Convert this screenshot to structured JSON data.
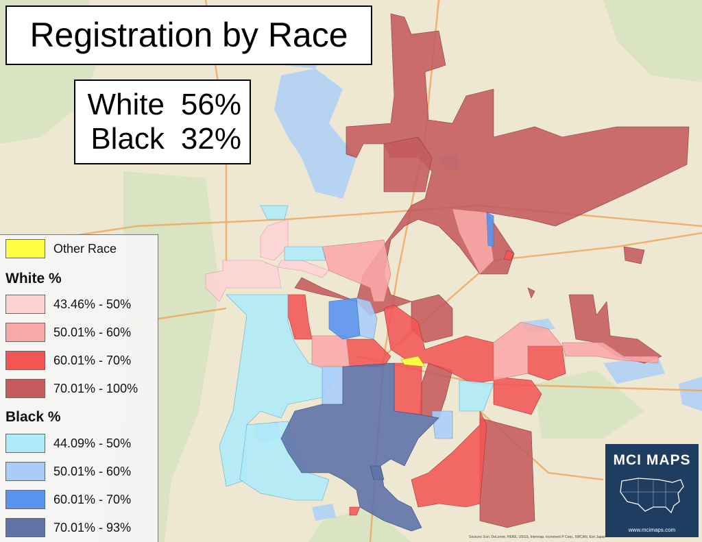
{
  "title": "Registration by Race",
  "stats": [
    {
      "label": "White",
      "value": "56%"
    },
    {
      "label": "Black",
      "value": "32%"
    }
  ],
  "legend": {
    "other": {
      "label": "Other Race",
      "color": "#ffff44"
    },
    "white_heading": "White %",
    "white_bins": [
      {
        "label": "43.46% - 50%",
        "color": "#fcd4d4"
      },
      {
        "label": "50.01% - 60%",
        "color": "#f9a9a9"
      },
      {
        "label": "60.01% - 70%",
        "color": "#f25555"
      },
      {
        "label": "70.01% - 100%",
        "color": "#c45a5c"
      }
    ],
    "black_heading": "Black %",
    "black_bins": [
      {
        "label": "44.09% - 50%",
        "color": "#aeeaf9"
      },
      {
        "label": "50.01% - 60%",
        "color": "#a9cdf9"
      },
      {
        "label": "60.01% - 70%",
        "color": "#5a94ee"
      },
      {
        "label": "70.01% - 93%",
        "color": "#5f73a9"
      }
    ]
  },
  "logo": {
    "brand": "MCI MAPS",
    "url": "www.mcimaps.com"
  },
  "attribution": "Sources: Esri, DeLorme, HERE, USGS, Intermap, increment P Corp., NRCAN, Esri Japan"
}
